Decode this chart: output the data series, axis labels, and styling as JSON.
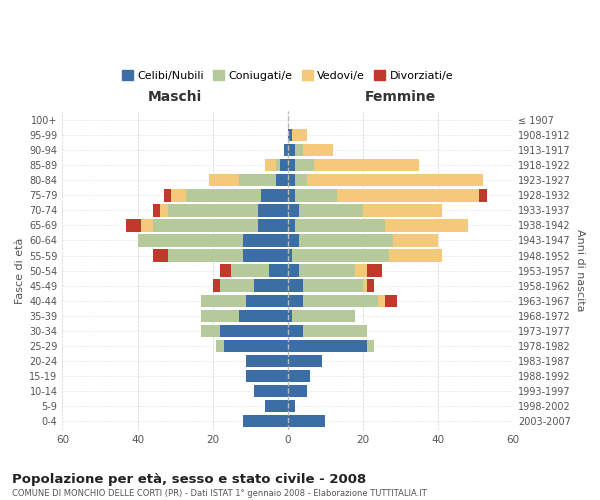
{
  "age_groups": [
    "0-4",
    "5-9",
    "10-14",
    "15-19",
    "20-24",
    "25-29",
    "30-34",
    "35-39",
    "40-44",
    "45-49",
    "50-54",
    "55-59",
    "60-64",
    "65-69",
    "70-74",
    "75-79",
    "80-84",
    "85-89",
    "90-94",
    "95-99",
    "100+"
  ],
  "birth_years": [
    "2003-2007",
    "1998-2002",
    "1993-1997",
    "1988-1992",
    "1983-1987",
    "1978-1982",
    "1973-1977",
    "1968-1972",
    "1963-1967",
    "1958-1962",
    "1953-1957",
    "1948-1952",
    "1943-1947",
    "1938-1942",
    "1933-1937",
    "1928-1932",
    "1923-1927",
    "1918-1922",
    "1913-1917",
    "1908-1912",
    "≤ 1907"
  ],
  "colors": {
    "celibe": "#3a6ea5",
    "coniugato": "#b5c99a",
    "vedovo": "#f5c97a",
    "divorziato": "#c0392b"
  },
  "maschi": {
    "celibe": [
      12,
      6,
      9,
      11,
      11,
      17,
      18,
      13,
      11,
      9,
      5,
      12,
      12,
      8,
      8,
      7,
      3,
      2,
      1,
      0,
      0
    ],
    "coniugato": [
      0,
      0,
      0,
      0,
      0,
      2,
      5,
      10,
      12,
      9,
      10,
      20,
      28,
      28,
      24,
      20,
      10,
      1,
      0,
      0,
      0
    ],
    "vedovo": [
      0,
      0,
      0,
      0,
      0,
      0,
      0,
      0,
      0,
      0,
      0,
      0,
      0,
      3,
      2,
      4,
      8,
      3,
      0,
      0,
      0
    ],
    "divorziato": [
      0,
      0,
      0,
      0,
      0,
      0,
      0,
      0,
      0,
      2,
      3,
      4,
      0,
      4,
      2,
      2,
      0,
      0,
      0,
      0,
      0
    ]
  },
  "femmine": {
    "nubile": [
      10,
      2,
      5,
      6,
      9,
      21,
      4,
      1,
      4,
      4,
      3,
      1,
      3,
      2,
      3,
      2,
      2,
      2,
      2,
      1,
      0
    ],
    "coniugata": [
      0,
      0,
      0,
      0,
      0,
      2,
      17,
      17,
      20,
      16,
      15,
      26,
      25,
      24,
      17,
      11,
      3,
      5,
      2,
      0,
      0
    ],
    "vedova": [
      0,
      0,
      0,
      0,
      0,
      0,
      0,
      0,
      2,
      1,
      3,
      14,
      12,
      22,
      21,
      38,
      47,
      28,
      8,
      4,
      0
    ],
    "divorziata": [
      0,
      0,
      0,
      0,
      0,
      0,
      0,
      0,
      3,
      2,
      4,
      0,
      0,
      0,
      0,
      2,
      0,
      0,
      0,
      0,
      0
    ]
  },
  "title": "Popolazione per età, sesso e stato civile - 2008",
  "subtitle": "COMUNE DI MONCHIO DELLE CORTI (PR) - Dati ISTAT 1° gennaio 2008 - Elaborazione TUTTITALIA.IT",
  "xlabel_left": "Maschi",
  "xlabel_right": "Femmine",
  "ylabel_left": "Fasce di età",
  "ylabel_right": "Anni di nascita",
  "xlim": 60,
  "background": "#ffffff",
  "grid_color": "#cccccc"
}
